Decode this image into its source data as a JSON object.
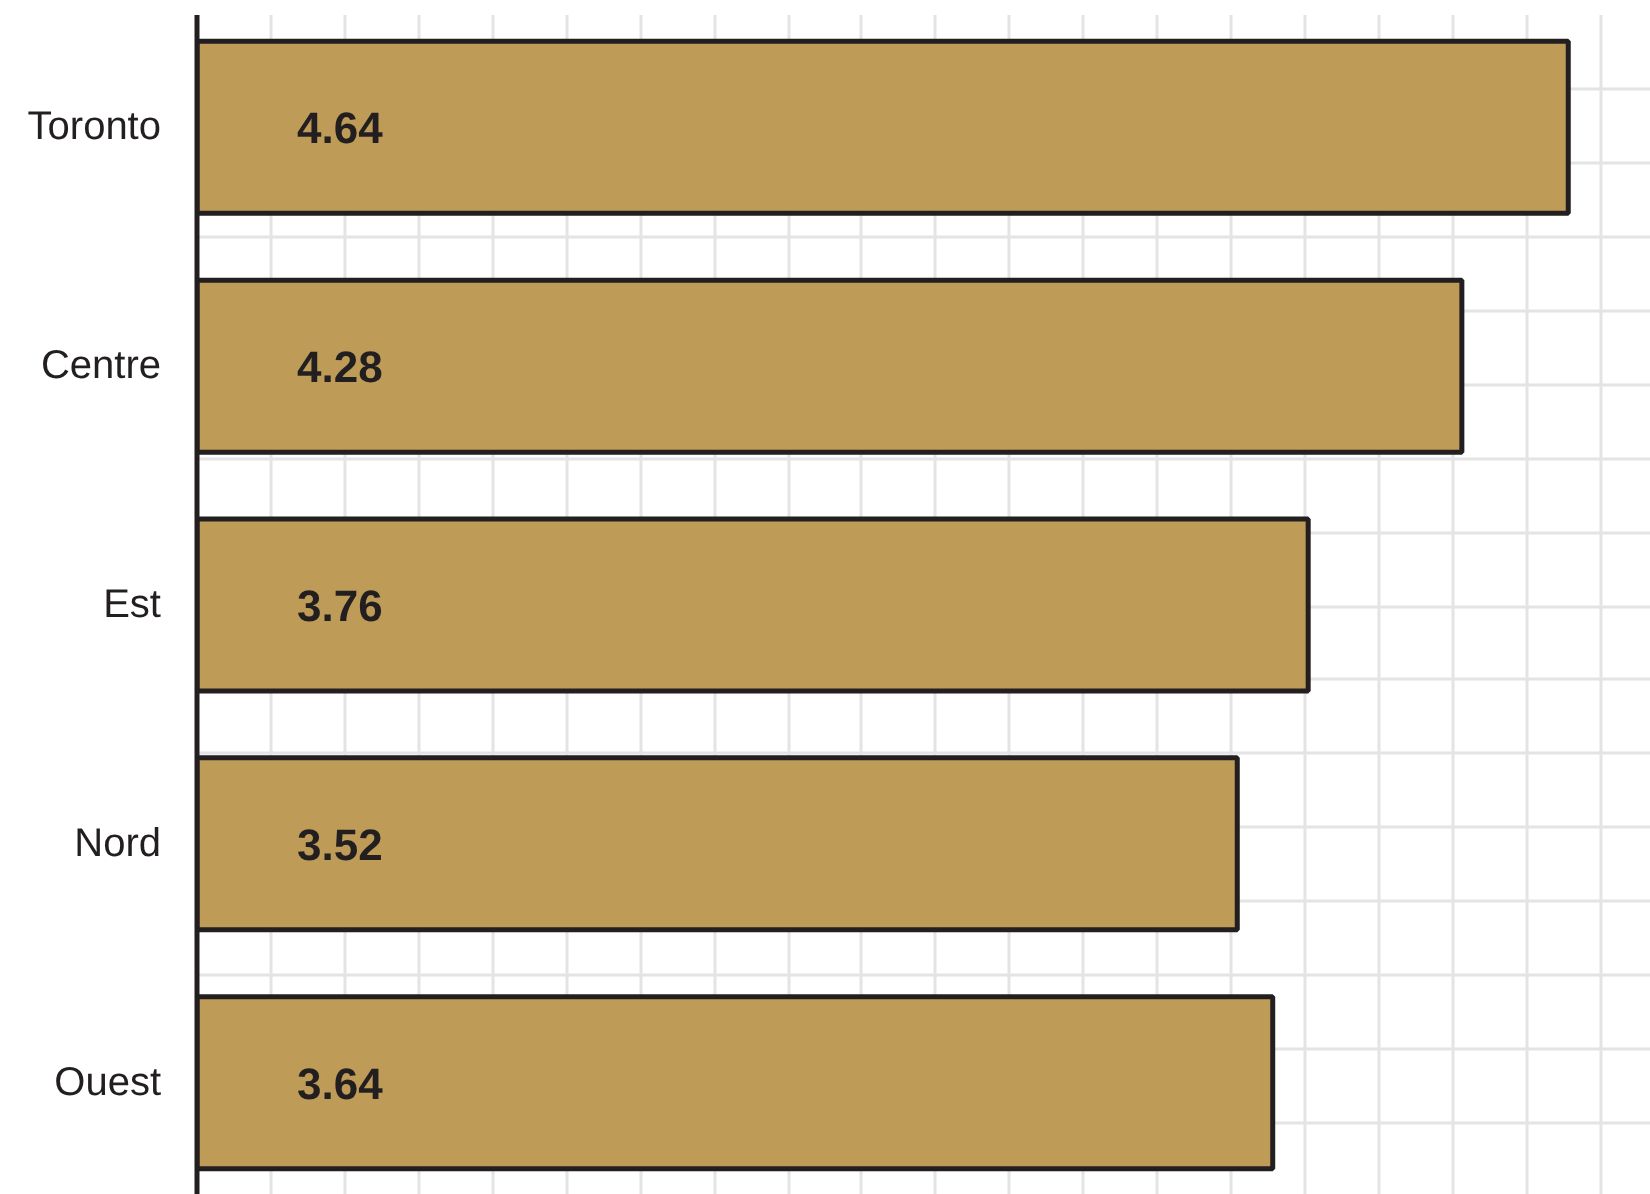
{
  "chart_data": {
    "type": "bar",
    "orientation": "horizontal",
    "categories": [
      "Toronto",
      "Centre",
      "Est",
      "Nord",
      "Ouest"
    ],
    "values": [
      4.64,
      4.28,
      3.76,
      3.52,
      3.64
    ],
    "color": "#be9c57",
    "data_labels": true,
    "xlim": [
      0,
      4.92
    ],
    "xticks": [
      {
        "value": 0.25,
        "label": null
      },
      {
        "value": 0.5,
        "label": null
      },
      {
        "value": 0.75,
        "label": null
      },
      {
        "value": 1,
        "label": null
      },
      {
        "value": 1.25,
        "label": null
      },
      {
        "value": 1.5,
        "label": null
      },
      {
        "value": 1.75,
        "label": null
      },
      {
        "value": 2,
        "label": null
      },
      {
        "value": 2.25,
        "label": null
      },
      {
        "value": 2.5,
        "label": null
      },
      {
        "value": 2.75,
        "label": null
      },
      {
        "value": 3,
        "label": null
      },
      {
        "value": 3.25,
        "label": null
      },
      {
        "value": 3.5,
        "label": null
      },
      {
        "value": 3.75,
        "label": null
      },
      {
        "value": 4,
        "label": null
      },
      {
        "value": 4.25,
        "label": null
      },
      {
        "value": 4.5,
        "label": null
      },
      {
        "value": 4.75,
        "label": null
      }
    ],
    "grid": true,
    "tick_labels": "y"
  }
}
